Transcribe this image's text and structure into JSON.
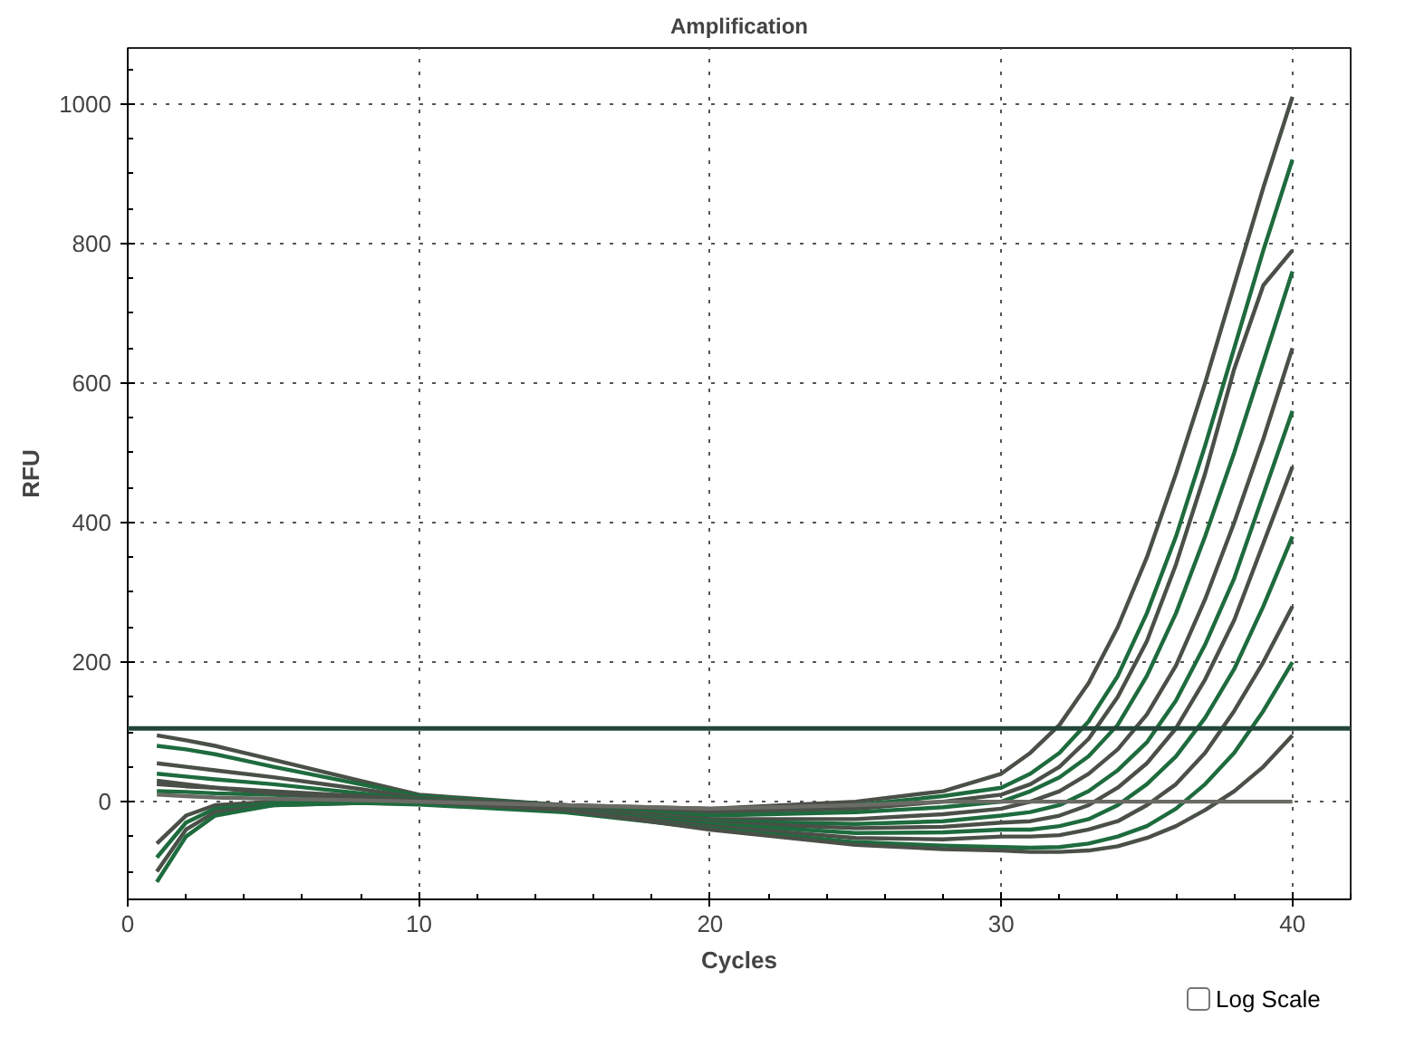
{
  "chart_data": {
    "type": "line",
    "title": "Amplification",
    "xlabel": "Cycles",
    "ylabel": "RFU",
    "x": [
      1,
      2,
      3,
      5,
      8,
      10,
      15,
      20,
      25,
      28,
      30,
      31,
      32,
      33,
      34,
      35,
      36,
      37,
      38,
      39,
      40
    ],
    "xlim": [
      0,
      42
    ],
    "ylim": [
      -140,
      1080
    ],
    "xticks": [
      0,
      10,
      20,
      30,
      40
    ],
    "yticks": [
      0,
      200,
      400,
      600,
      800,
      1000
    ],
    "grid": true,
    "marker": "none",
    "line_style": "solid",
    "log": false,
    "ref_lines": [
      {
        "axis": "y",
        "value": 105,
        "color": "#24463a"
      }
    ],
    "annotations": [
      "Log Scale"
    ],
    "series": [
      {
        "color": "#4a5048",
        "values": [
          95,
          88,
          80,
          60,
          30,
          10,
          -5,
          -10,
          0,
          15,
          40,
          70,
          110,
          170,
          250,
          350,
          470,
          600,
          740,
          880,
          1010
        ]
      },
      {
        "color": "#1e6b3e",
        "values": [
          80,
          75,
          68,
          50,
          25,
          8,
          -5,
          -15,
          -5,
          8,
          20,
          40,
          70,
          115,
          180,
          270,
          380,
          510,
          650,
          790,
          920
        ]
      },
      {
        "color": "#4a5048",
        "values": [
          55,
          50,
          45,
          35,
          18,
          5,
          -5,
          -15,
          -10,
          0,
          10,
          25,
          50,
          90,
          150,
          230,
          340,
          470,
          620,
          740,
          790
        ]
      },
      {
        "color": "#1e6b3e",
        "values": [
          40,
          36,
          32,
          25,
          12,
          3,
          -8,
          -20,
          -15,
          -8,
          0,
          15,
          35,
          65,
          110,
          180,
          270,
          380,
          500,
          630,
          760
        ]
      },
      {
        "color": "#4a5048",
        "values": [
          25,
          22,
          20,
          15,
          8,
          2,
          -8,
          -25,
          -25,
          -18,
          -10,
          0,
          15,
          40,
          75,
          125,
          195,
          290,
          400,
          520,
          650
        ]
      },
      {
        "color": "#1e6b3e",
        "values": [
          15,
          14,
          12,
          10,
          5,
          0,
          -10,
          -28,
          -32,
          -28,
          -20,
          -15,
          -5,
          15,
          45,
          85,
          145,
          225,
          320,
          440,
          560
        ]
      },
      {
        "color": "#4a5048",
        "values": [
          -60,
          -20,
          -5,
          0,
          2,
          0,
          -10,
          -30,
          -38,
          -36,
          -30,
          -28,
          -20,
          -5,
          20,
          55,
          105,
          175,
          260,
          370,
          480
        ]
      },
      {
        "color": "#1e6b3e",
        "values": [
          -80,
          -30,
          -10,
          -2,
          0,
          -2,
          -12,
          -32,
          -45,
          -44,
          -40,
          -40,
          -35,
          -25,
          -5,
          25,
          65,
          120,
          190,
          280,
          380
        ]
      },
      {
        "color": "#4a5048",
        "values": [
          -100,
          -40,
          -15,
          -5,
          -2,
          -3,
          -13,
          -35,
          -52,
          -54,
          -50,
          -50,
          -48,
          -40,
          -28,
          -5,
          25,
          70,
          130,
          200,
          280
        ]
      },
      {
        "color": "#1e6b3e",
        "values": [
          -115,
          -50,
          -20,
          -5,
          -2,
          -4,
          -15,
          -38,
          -58,
          -63,
          -65,
          -66,
          -65,
          -60,
          -50,
          -35,
          -10,
          25,
          70,
          130,
          200
        ]
      },
      {
        "color": "#4a5048",
        "values": [
          30,
          25,
          20,
          12,
          5,
          0,
          -12,
          -40,
          -62,
          -68,
          -70,
          -72,
          -72,
          -70,
          -64,
          -52,
          -35,
          -12,
          15,
          50,
          95
        ]
      },
      {
        "color": "#6b6b66",
        "values": [
          10,
          8,
          6,
          4,
          2,
          0,
          -5,
          -10,
          -5,
          0,
          0,
          0,
          0,
          0,
          0,
          0,
          0,
          0,
          0,
          0,
          0
        ]
      }
    ]
  }
}
